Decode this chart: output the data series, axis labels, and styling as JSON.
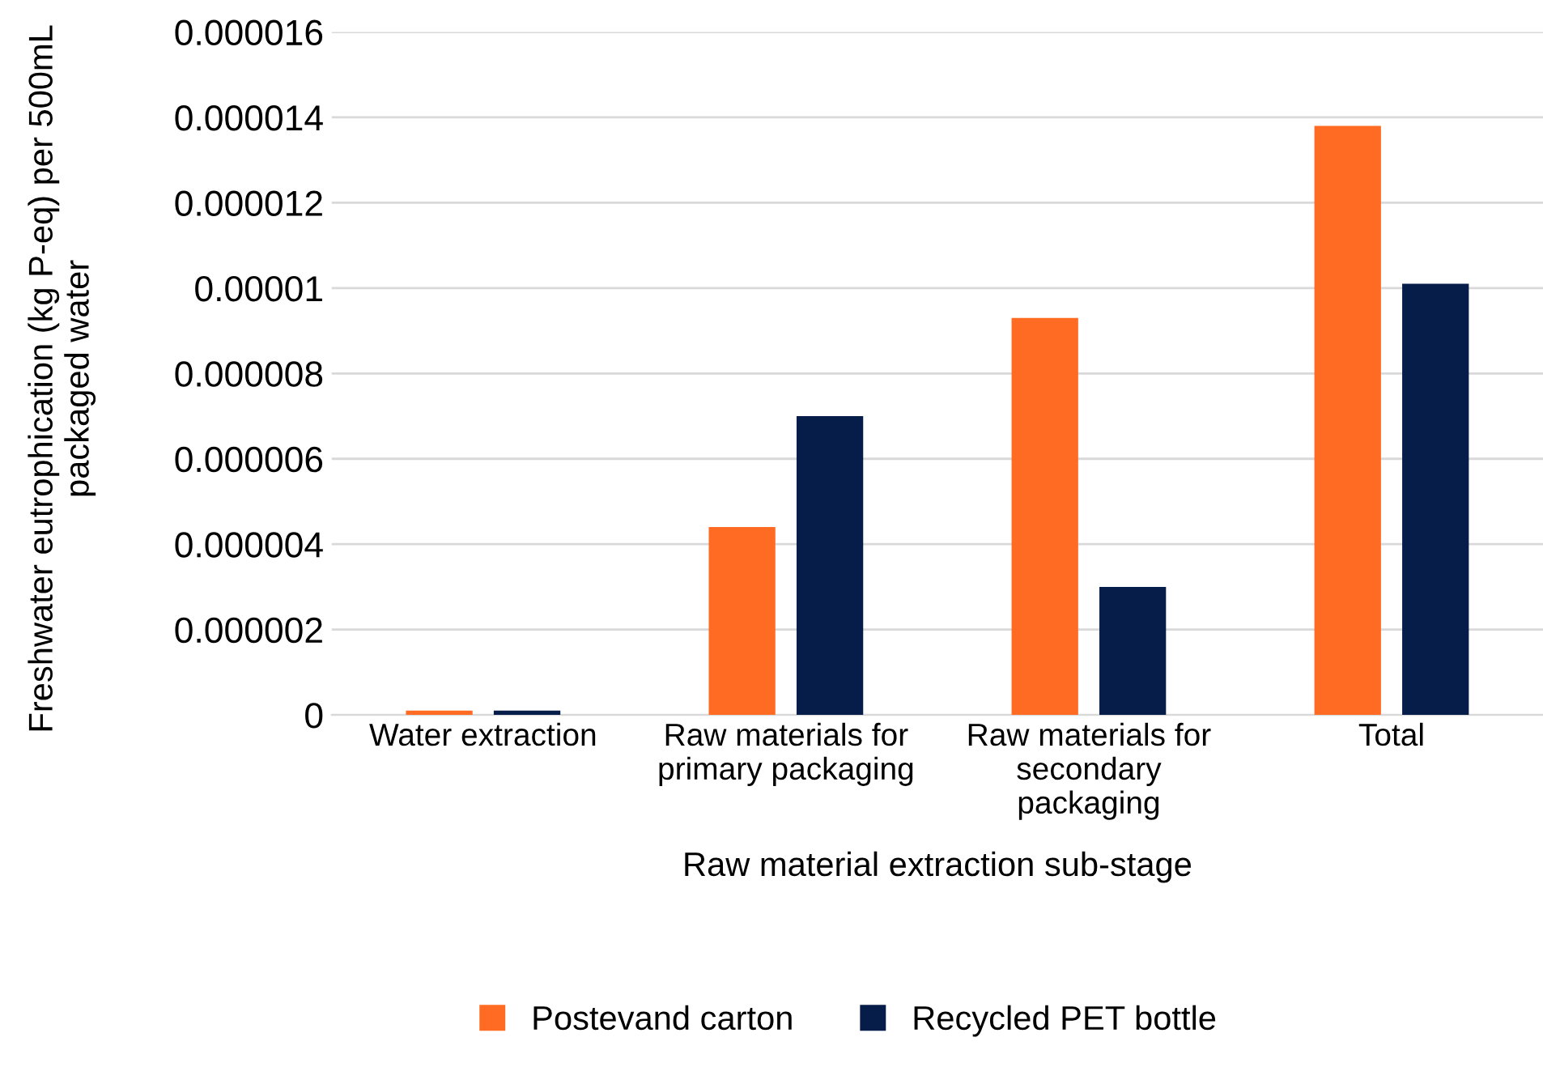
{
  "chart_data": {
    "type": "bar",
    "xlabel": "Raw material extraction sub-stage",
    "ylabel": "Freshwater eutrophication (kg P-eq) per 500mL packaged water",
    "categories": [
      "Water extraction",
      "Raw materials for\nprimary packaging",
      "Raw materials for\nsecondary\npackaging",
      "Total"
    ],
    "series": [
      {
        "name": "Postevand carton",
        "color": "#ff6b23",
        "values": [
          1e-07,
          4.4e-06,
          9.3e-06,
          1.38e-05
        ]
      },
      {
        "name": "Recycled PET bottle",
        "color": "#061d4a",
        "values": [
          1e-07,
          7e-06,
          3e-06,
          1.01e-05
        ]
      }
    ],
    "ylim": [
      0,
      1.6e-05
    ],
    "yticks": [
      0,
      {
        "value": 2e-06,
        "label": "0.000002"
      },
      {
        "value": 4e-06,
        "label": "0.000004"
      },
      {
        "value": 6e-06,
        "label": "0.000006"
      },
      {
        "value": 8e-06,
        "label": "0.000008"
      },
      {
        "value": 1e-05,
        "label": "0.00001"
      },
      {
        "value": 1.2e-05,
        "label": "0.000012"
      },
      {
        "value": 1.4e-05,
        "label": "0.000014"
      },
      {
        "value": 1.6e-05,
        "label": "0.000016"
      }
    ],
    "grid": "y",
    "legend": "bottom"
  }
}
